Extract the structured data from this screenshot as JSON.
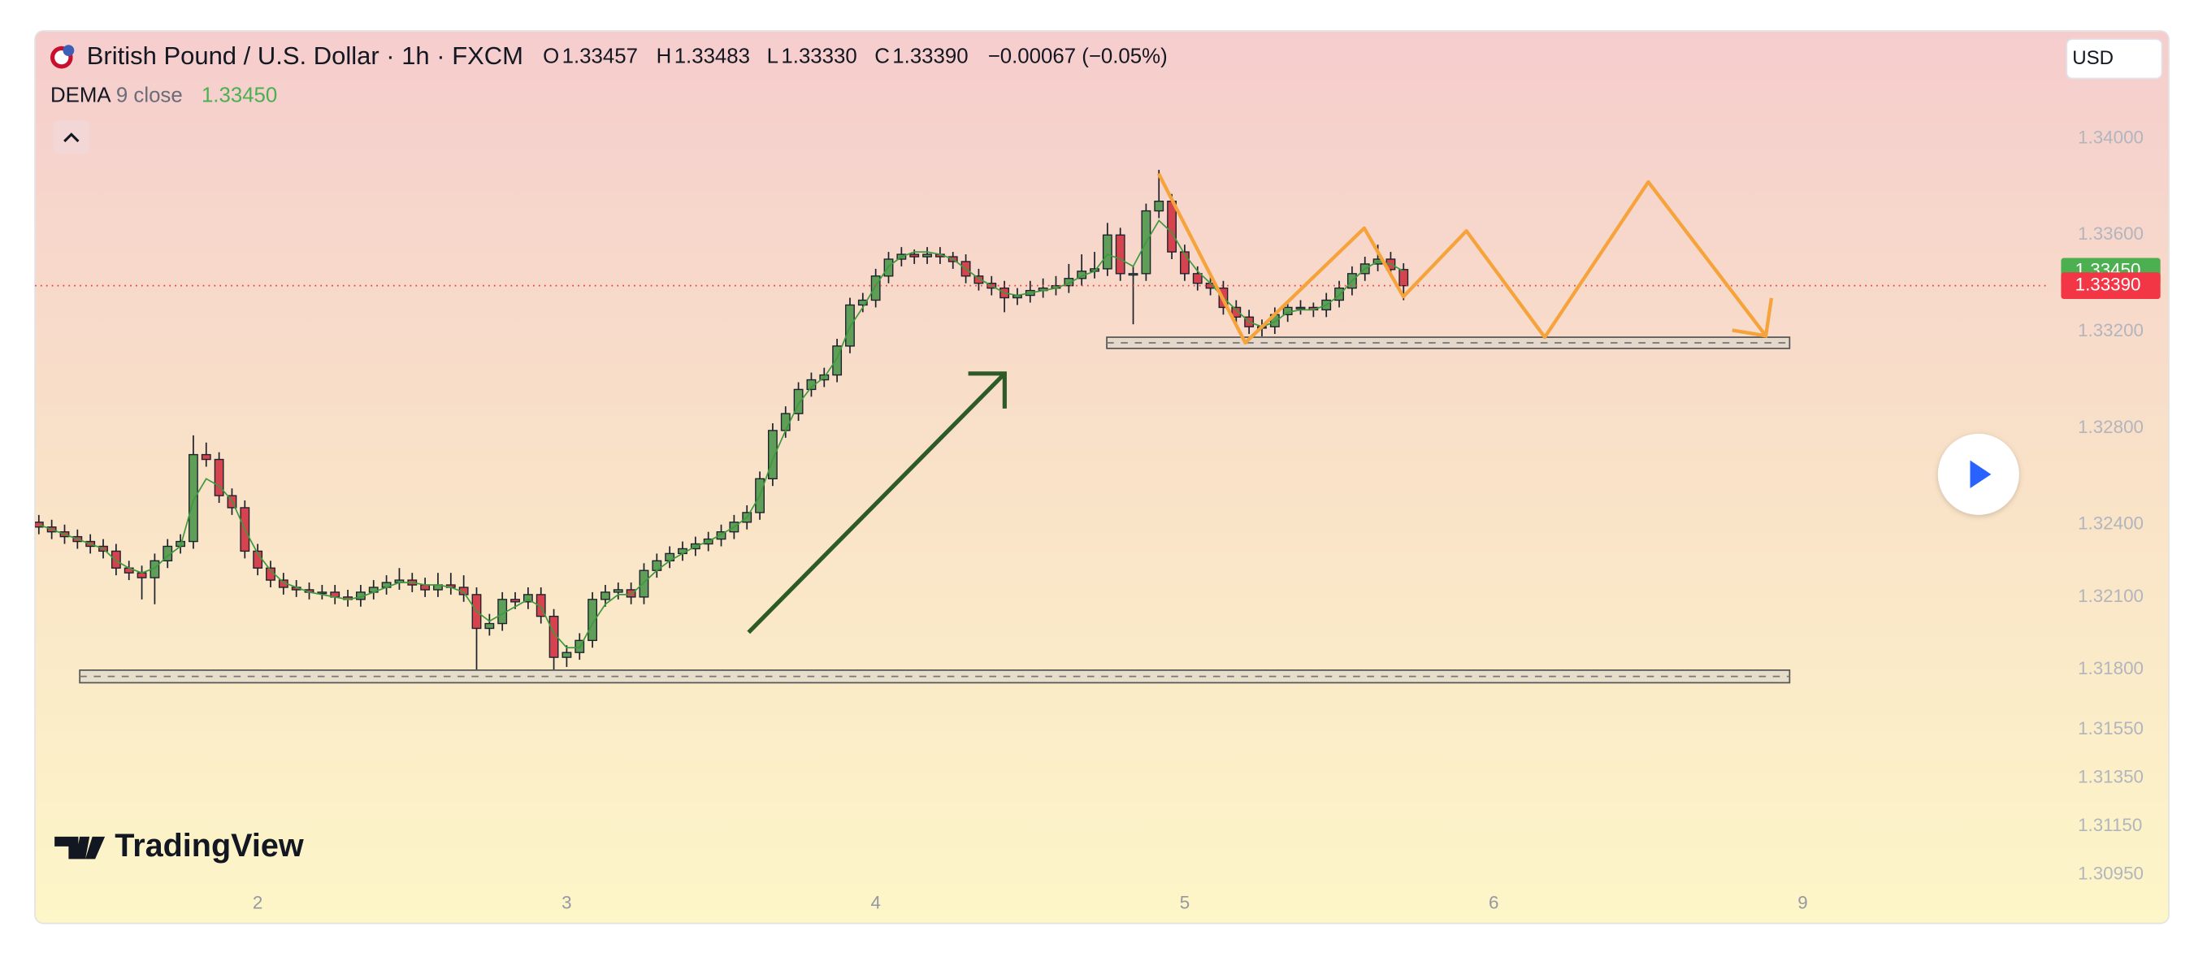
{
  "chart_data": {
    "type": "candlestick",
    "title": "British Pound / U.S. Dollar · 1h · FXCM",
    "ohlc_legend": [
      {
        "label": "O",
        "value": "1.33457"
      },
      {
        "label": "H",
        "value": "1.33483"
      },
      {
        "label": "L",
        "value": "1.33330"
      },
      {
        "label": "C",
        "value": "1.33390"
      }
    ],
    "change": "−0.00067 (−0.05%)",
    "currency": "USD",
    "brand": "TradingView",
    "up_color": "#5f9e58",
    "down_color": "#d5434e",
    "grid": false,
    "open": [
      1.3241,
      1.3239,
      1.3237,
      1.3235,
      1.3233,
      1.3231,
      1.3229,
      1.3222,
      1.322,
      1.3218,
      1.3225,
      1.3231,
      1.3233,
      1.3269,
      1.3267,
      1.3252,
      1.3247,
      1.3229,
      1.3222,
      1.3217,
      1.3214,
      1.3213,
      1.3212,
      1.3212,
      1.321,
      1.3209,
      1.3212,
      1.3214,
      1.3216,
      1.3217,
      1.3215,
      1.3213,
      1.3215,
      1.3214,
      1.3211,
      1.3197,
      1.3199,
      1.3209,
      1.3208,
      1.3211,
      1.3202,
      1.3185,
      1.3187,
      1.3192,
      1.3209,
      1.3212,
      1.3213,
      1.321,
      1.3221,
      1.3225,
      1.3228,
      1.323,
      1.3232,
      1.3234,
      1.3237,
      1.3241,
      1.3245,
      1.3259,
      1.3279,
      1.3286,
      1.3296,
      1.33,
      1.3302,
      1.3314,
      1.3331,
      1.3333,
      1.3343,
      1.335,
      1.3352,
      1.3351,
      1.3352,
      1.3351,
      1.3349,
      1.3343,
      1.334,
      1.3338,
      1.3334,
      1.3335,
      1.3337,
      1.3338,
      1.3339,
      1.3342,
      1.3345,
      1.3346,
      1.336,
      1.3344,
      1.3344,
      1.337,
      1.3374,
      1.3353,
      1.3344,
      1.334,
      1.3338,
      1.333,
      1.3326,
      1.3322,
      1.3322,
      1.3327,
      1.333,
      1.333,
      1.3329,
      1.3333,
      1.3338,
      1.3344,
      1.3348,
      1.335,
      1.33457
    ],
    "high": [
      1.3244,
      1.3242,
      1.324,
      1.3238,
      1.3236,
      1.3234,
      1.3232,
      1.3225,
      1.3223,
      1.3228,
      1.3234,
      1.3236,
      1.3277,
      1.3274,
      1.327,
      1.3255,
      1.325,
      1.3232,
      1.3225,
      1.322,
      1.3217,
      1.3216,
      1.3215,
      1.3215,
      1.3213,
      1.3215,
      1.3217,
      1.3219,
      1.3222,
      1.322,
      1.3218,
      1.322,
      1.322,
      1.3219,
      1.3214,
      1.3203,
      1.3212,
      1.3212,
      1.3214,
      1.3214,
      1.3205,
      1.319,
      1.3195,
      1.3212,
      1.3215,
      1.3216,
      1.3216,
      1.3224,
      1.3228,
      1.3231,
      1.3233,
      1.3235,
      1.3237,
      1.324,
      1.3244,
      1.3248,
      1.3262,
      1.3282,
      1.3289,
      1.3299,
      1.3303,
      1.3305,
      1.3317,
      1.3334,
      1.3336,
      1.3346,
      1.3353,
      1.3355,
      1.3354,
      1.3355,
      1.3355,
      1.3353,
      1.3352,
      1.3346,
      1.3343,
      1.3341,
      1.3338,
      1.3341,
      1.3342,
      1.3343,
      1.3348,
      1.3352,
      1.3353,
      1.3365,
      1.3363,
      1.3347,
      1.3373,
      1.3387,
      1.3377,
      1.3356,
      1.3347,
      1.3343,
      1.3341,
      1.3333,
      1.3329,
      1.3325,
      1.333,
      1.3333,
      1.3333,
      1.3332,
      1.3336,
      1.3341,
      1.3347,
      1.3351,
      1.3356,
      1.3353,
      1.33483
    ],
    "low": [
      1.3236,
      1.3234,
      1.3232,
      1.323,
      1.3228,
      1.3226,
      1.3219,
      1.3217,
      1.3209,
      1.3207,
      1.3222,
      1.3228,
      1.323,
      1.3264,
      1.3249,
      1.3244,
      1.3226,
      1.3219,
      1.3214,
      1.3211,
      1.321,
      1.3209,
      1.3209,
      1.3207,
      1.3206,
      1.3206,
      1.3209,
      1.3211,
      1.3213,
      1.3212,
      1.321,
      1.321,
      1.3211,
      1.3208,
      1.318,
      1.3194,
      1.3196,
      1.3205,
      1.3205,
      1.3199,
      1.318,
      1.3181,
      1.3184,
      1.3189,
      1.3206,
      1.3209,
      1.3207,
      1.3207,
      1.3218,
      1.3222,
      1.3225,
      1.3227,
      1.3229,
      1.3231,
      1.3234,
      1.3238,
      1.3242,
      1.3256,
      1.3276,
      1.3283,
      1.3293,
      1.3297,
      1.3299,
      1.3311,
      1.3328,
      1.333,
      1.334,
      1.3347,
      1.3348,
      1.3348,
      1.3348,
      1.3346,
      1.334,
      1.3337,
      1.3335,
      1.3328,
      1.3331,
      1.3332,
      1.3334,
      1.3335,
      1.3336,
      1.3339,
      1.3342,
      1.3343,
      1.3341,
      1.3323,
      1.3341,
      1.3367,
      1.335,
      1.3341,
      1.3337,
      1.3335,
      1.3327,
      1.3323,
      1.3319,
      1.3318,
      1.3319,
      1.3324,
      1.3327,
      1.3326,
      1.3326,
      1.333,
      1.3335,
      1.3341,
      1.3345,
      1.3343,
      1.3333
    ],
    "close": [
      1.3239,
      1.3237,
      1.3235,
      1.3233,
      1.3231,
      1.3229,
      1.3222,
      1.322,
      1.3218,
      1.3225,
      1.3231,
      1.3233,
      1.3269,
      1.3267,
      1.3252,
      1.3247,
      1.3229,
      1.3222,
      1.3217,
      1.3214,
      1.3213,
      1.3212,
      1.3212,
      1.321,
      1.3209,
      1.3212,
      1.3214,
      1.3216,
      1.3217,
      1.3215,
      1.3213,
      1.3215,
      1.3214,
      1.3211,
      1.3197,
      1.3199,
      1.3209,
      1.3208,
      1.3211,
      1.3202,
      1.3185,
      1.3187,
      1.3192,
      1.3209,
      1.3212,
      1.3213,
      1.321,
      1.3221,
      1.3225,
      1.3228,
      1.323,
      1.3232,
      1.3234,
      1.3237,
      1.3241,
      1.3245,
      1.3259,
      1.3279,
      1.3286,
      1.3296,
      1.33,
      1.3302,
      1.3314,
      1.3331,
      1.3333,
      1.3343,
      1.335,
      1.3352,
      1.3351,
      1.3352,
      1.3351,
      1.3349,
      1.3343,
      1.334,
      1.3338,
      1.3334,
      1.3335,
      1.3337,
      1.3338,
      1.3339,
      1.3342,
      1.3345,
      1.3346,
      1.336,
      1.3344,
      1.3344,
      1.337,
      1.3374,
      1.3353,
      1.3344,
      1.334,
      1.3338,
      1.333,
      1.3326,
      1.3322,
      1.3322,
      1.3327,
      1.333,
      1.333,
      1.3329,
      1.3333,
      1.3338,
      1.3344,
      1.3348,
      1.335,
      1.33457,
      1.3339
    ],
    "indicator": {
      "name": "DEMA",
      "params": "9 close",
      "value_label": "1.33450",
      "color": "#3f9a3f",
      "values": [
        1.324,
        1.3238,
        1.3236,
        1.3234,
        1.3232,
        1.323,
        1.3225,
        1.3222,
        1.322,
        1.3222,
        1.3227,
        1.3231,
        1.325,
        1.3259,
        1.3256,
        1.325,
        1.3238,
        1.3228,
        1.3221,
        1.3216,
        1.3214,
        1.3212,
        1.3211,
        1.321,
        1.3209,
        1.321,
        1.3212,
        1.3214,
        1.3216,
        1.3216,
        1.3215,
        1.3215,
        1.3214,
        1.3212,
        1.3204,
        1.32,
        1.3203,
        1.3206,
        1.3209,
        1.3206,
        1.3195,
        1.3189,
        1.3189,
        1.3199,
        1.3207,
        1.3211,
        1.3211,
        1.3216,
        1.3221,
        1.3225,
        1.3228,
        1.3231,
        1.3233,
        1.3236,
        1.3239,
        1.3243,
        1.3252,
        1.3267,
        1.3279,
        1.329,
        1.3297,
        1.3301,
        1.3309,
        1.3322,
        1.333,
        1.3339,
        1.3347,
        1.3351,
        1.3353,
        1.3353,
        1.3352,
        1.335,
        1.3346,
        1.3342,
        1.3339,
        1.3336,
        1.3335,
        1.3336,
        1.3337,
        1.3338,
        1.334,
        1.3343,
        1.3345,
        1.3352,
        1.335,
        1.3347,
        1.3357,
        1.3366,
        1.3361,
        1.3352,
        1.3345,
        1.334,
        1.3334,
        1.3329,
        1.3324,
        1.3322,
        1.3324,
        1.3328,
        1.3329,
        1.3329,
        1.3331,
        1.3335,
        1.3341,
        1.3346,
        1.3349,
        1.3348,
        1.3345
      ]
    },
    "price_tags": [
      {
        "value": 1.3345,
        "label": "1.33450",
        "color": "#4caf50"
      },
      {
        "value": 1.3339,
        "label": "1.33390",
        "color": "#f23645"
      }
    ],
    "xlim": [
      -0.3,
      156.2
    ],
    "xticks": [
      {
        "value": 17,
        "label": "2"
      },
      {
        "value": 41,
        "label": "3"
      },
      {
        "value": 65,
        "label": "4"
      },
      {
        "value": 89,
        "label": "5"
      },
      {
        "value": 113,
        "label": "6"
      },
      {
        "value": 137,
        "label": "9"
      }
    ],
    "ylim": [
      1.3091,
      1.34446
    ],
    "yticks": [
      {
        "value": 1.34,
        "label": "1.34000"
      },
      {
        "value": 1.336,
        "label": "1.33600"
      },
      {
        "value": 1.332,
        "label": "1.33200"
      },
      {
        "value": 1.328,
        "label": "1.32800"
      },
      {
        "value": 1.324,
        "label": "1.32400"
      },
      {
        "value": 1.321,
        "label": "1.32100"
      },
      {
        "value": 1.318,
        "label": "1.31800"
      },
      {
        "value": 1.3155,
        "label": "1.31550"
      },
      {
        "value": 1.3135,
        "label": "1.31350"
      },
      {
        "value": 1.3115,
        "label": "1.31150"
      },
      {
        "value": 1.3095,
        "label": "1.30950"
      }
    ]
  }
}
